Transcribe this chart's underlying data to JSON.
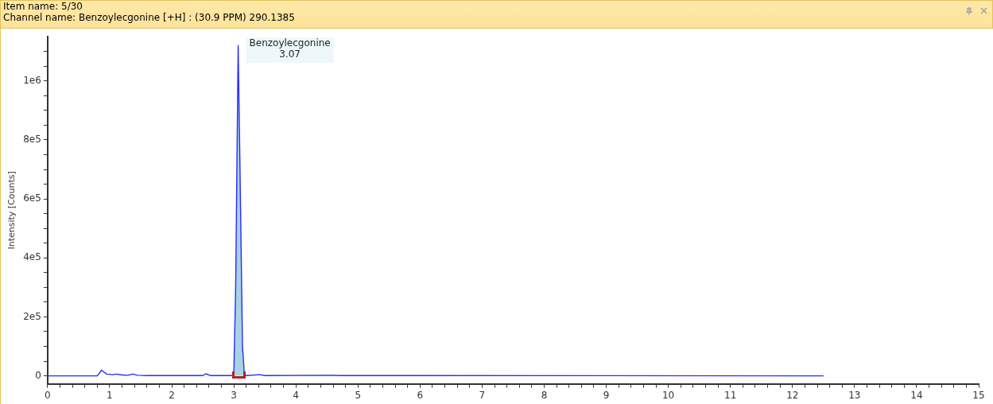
{
  "chart_data": {
    "type": "line",
    "title": "Item name: 5/30",
    "subtitle": "Channel name: Benzoylecgonine [+H] : (30.9 PPM) 290.1385",
    "ylabel": "Intensity [Counts]",
    "xlim": [
      0,
      15
    ],
    "ylim": [
      -27000,
      1150000
    ],
    "xticks": [
      0,
      {
        "value": 0.2,
        "label": null
      },
      {
        "value": 0.4,
        "label": null
      },
      {
        "value": 0.6,
        "label": null
      },
      {
        "value": 0.8,
        "label": null
      },
      1,
      {
        "value": 1.2,
        "label": null
      },
      {
        "value": 1.4,
        "label": null
      },
      {
        "value": 1.6,
        "label": null
      },
      {
        "value": 1.8,
        "label": null
      },
      2,
      {
        "value": 2.2,
        "label": null
      },
      {
        "value": 2.4,
        "label": null
      },
      {
        "value": 2.6,
        "label": null
      },
      {
        "value": 2.8,
        "label": null
      },
      3,
      {
        "value": 3.2,
        "label": null
      },
      {
        "value": 3.4,
        "label": null
      },
      {
        "value": 3.6,
        "label": null
      },
      {
        "value": 3.8,
        "label": null
      },
      4,
      {
        "value": 4.2,
        "label": null
      },
      {
        "value": 4.4,
        "label": null
      },
      {
        "value": 4.6,
        "label": null
      },
      {
        "value": 4.8,
        "label": null
      },
      5,
      {
        "value": 5.2,
        "label": null
      },
      {
        "value": 5.4,
        "label": null
      },
      {
        "value": 5.6,
        "label": null
      },
      {
        "value": 5.8,
        "label": null
      },
      6,
      {
        "value": 6.2,
        "label": null
      },
      {
        "value": 6.4,
        "label": null
      },
      {
        "value": 6.6,
        "label": null
      },
      {
        "value": 6.8,
        "label": null
      },
      7,
      {
        "value": 7.2,
        "label": null
      },
      {
        "value": 7.4,
        "label": null
      },
      {
        "value": 7.6,
        "label": null
      },
      {
        "value": 7.8,
        "label": null
      },
      8,
      {
        "value": 8.2,
        "label": null
      },
      {
        "value": 8.4,
        "label": null
      },
      {
        "value": 8.6,
        "label": null
      },
      {
        "value": 8.8,
        "label": null
      },
      9,
      {
        "value": 9.2,
        "label": null
      },
      {
        "value": 9.4,
        "label": null
      },
      {
        "value": 9.6,
        "label": null
      },
      {
        "value": 9.8,
        "label": null
      },
      10,
      {
        "value": 10.2,
        "label": null
      },
      {
        "value": 10.4,
        "label": null
      },
      {
        "value": 10.6,
        "label": null
      },
      {
        "value": 10.8,
        "label": null
      },
      11,
      {
        "value": 11.2,
        "label": null
      },
      {
        "value": 11.4,
        "label": null
      },
      {
        "value": 11.6,
        "label": null
      },
      {
        "value": 11.8,
        "label": null
      },
      12,
      {
        "value": 12.2,
        "label": null
      },
      {
        "value": 12.4,
        "label": null
      },
      {
        "value": 12.6,
        "label": null
      },
      {
        "value": 12.8,
        "label": null
      },
      13,
      {
        "value": 13.2,
        "label": null
      },
      {
        "value": 13.4,
        "label": null
      },
      {
        "value": 13.6,
        "label": null
      },
      {
        "value": 13.8,
        "label": null
      },
      14,
      {
        "value": 14.2,
        "label": null
      },
      {
        "value": 14.4,
        "label": null
      },
      {
        "value": 14.6,
        "label": null
      },
      {
        "value": 14.8,
        "label": null
      },
      15
    ],
    "yticks": [
      0,
      {
        "value": 50000,
        "label": null
      },
      {
        "value": 100000,
        "label": null
      },
      {
        "value": 150000,
        "label": null
      },
      {
        "value": 200000,
        "label": "2e5"
      },
      {
        "value": 250000,
        "label": null
      },
      {
        "value": 300000,
        "label": null
      },
      {
        "value": 350000,
        "label": null
      },
      {
        "value": 400000,
        "label": "4e5"
      },
      {
        "value": 450000,
        "label": null
      },
      {
        "value": 500000,
        "label": null
      },
      {
        "value": 550000,
        "label": null
      },
      {
        "value": 600000,
        "label": "6e5"
      },
      {
        "value": 650000,
        "label": null
      },
      {
        "value": 700000,
        "label": null
      },
      {
        "value": 750000,
        "label": null
      },
      {
        "value": 800000,
        "label": "8e5"
      },
      {
        "value": 850000,
        "label": null
      },
      {
        "value": 900000,
        "label": null
      },
      {
        "value": 950000,
        "label": null
      },
      {
        "value": 1000000,
        "label": "1e6"
      },
      {
        "value": 1050000,
        "label": null
      },
      {
        "value": 1100000,
        "label": null
      }
    ],
    "grid": false,
    "legend": false,
    "marker": "none",
    "line_style": "solid",
    "series": [
      {
        "type": "area",
        "color": "#a9d3e4",
        "x": [
          3.0,
          3.03,
          3.07,
          3.1,
          3.14,
          3.17
        ],
        "values": [
          5000,
          300000,
          1120000,
          700000,
          100000,
          5000
        ]
      },
      {
        "color": "#2a2aff",
        "x": [
          0,
          0.8,
          0.87,
          0.95,
          1.05,
          1.1,
          1.2,
          1.3,
          1.37,
          1.45,
          1.6,
          2.0,
          2.5,
          2.55,
          2.62,
          2.98,
          3.0,
          3.03,
          3.07,
          3.1,
          3.14,
          3.17,
          3.2,
          3.42,
          3.5,
          4.6,
          4.7,
          12.5
        ],
        "values": [
          0,
          0,
          19000,
          6000,
          4000,
          6000,
          3000,
          2000,
          6000,
          2000,
          1000,
          1000,
          1000,
          7000,
          1000,
          1000,
          5000,
          300000,
          1120000,
          700000,
          100000,
          5000,
          1000,
          4000,
          1000,
          2000,
          1000,
          0
        ]
      }
    ],
    "annotations": [
      {
        "text": "Benzoylecgonine\n3.07",
        "x": 3.07,
        "y": 1120000
      }
    ]
  }
}
